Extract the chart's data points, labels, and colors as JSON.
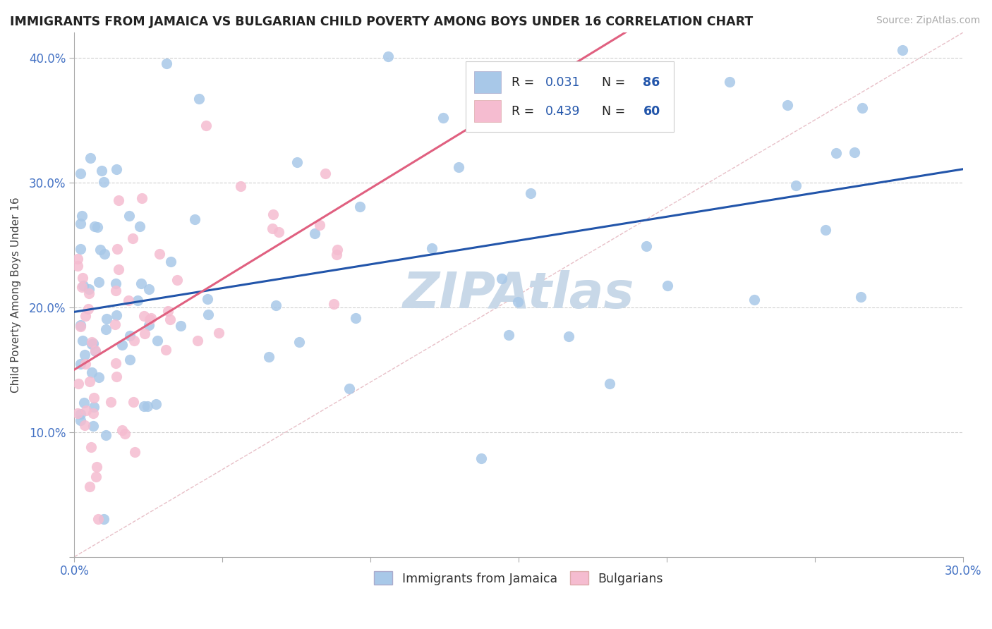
{
  "title": "IMMIGRANTS FROM JAMAICA VS BULGARIAN CHILD POVERTY AMONG BOYS UNDER 16 CORRELATION CHART",
  "source": "Source: ZipAtlas.com",
  "ylabel": "Child Poverty Among Boys Under 16",
  "xlim": [
    0.0,
    0.3
  ],
  "ylim": [
    0.0,
    0.42
  ],
  "blue_scatter_color": "#a8c8e8",
  "pink_scatter_color": "#f5bcd0",
  "blue_line_color": "#2255aa",
  "pink_line_color": "#e06080",
  "ref_line_color": "#e8c0c8",
  "grid_color": "#d0d0d0",
  "blue_R": 0.031,
  "blue_N": 86,
  "pink_R": 0.439,
  "pink_N": 60,
  "tick_color": "#4472c4",
  "watermark_color": "#c8d8e8"
}
